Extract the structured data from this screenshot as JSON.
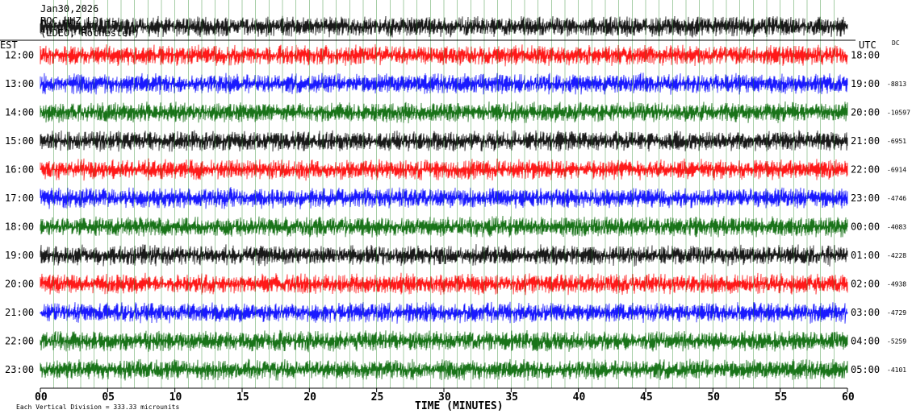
{
  "header": {
    "date": "Jan30,2026",
    "station": "ROC HHZ LD --",
    "network": "(LDEO, Rochester)"
  },
  "labels": {
    "left_zone": "EST",
    "right_zone": "UTC",
    "dc": "DC",
    "x_title": "TIME (MINUTES)",
    "footnote": "Each Vertical Division = 333.33 microunits"
  },
  "chart_data": {
    "type": "line",
    "title": "",
    "xlabel": "TIME (MINUTES)",
    "ylabel": "",
    "xlim": [
      0,
      60
    ],
    "x_ticks": [
      "00",
      "05",
      "10",
      "15",
      "20",
      "25",
      "30",
      "35",
      "40",
      "45",
      "50",
      "55",
      "60"
    ],
    "grid": true,
    "colors": {
      "black": "#000000",
      "red": "#ff0000",
      "blue": "#0000ff",
      "green": "#006400"
    },
    "rows": [
      {
        "est": "",
        "utc": "",
        "dc": "",
        "color": "black"
      },
      {
        "est": "12:00",
        "utc": "18:00",
        "dc": "",
        "color": "red"
      },
      {
        "est": "13:00",
        "utc": "19:00",
        "dc": "-8813",
        "color": "blue"
      },
      {
        "est": "14:00",
        "utc": "20:00",
        "dc": "-10597",
        "color": "green"
      },
      {
        "est": "15:00",
        "utc": "21:00",
        "dc": "-6951",
        "color": "black"
      },
      {
        "est": "16:00",
        "utc": "22:00",
        "dc": "-6914",
        "color": "red"
      },
      {
        "est": "17:00",
        "utc": "23:00",
        "dc": "-4746",
        "color": "blue"
      },
      {
        "est": "18:00",
        "utc": "00:00",
        "dc": "-4083",
        "color": "green"
      },
      {
        "est": "19:00",
        "utc": "01:00",
        "dc": "-4228",
        "color": "black"
      },
      {
        "est": "20:00",
        "utc": "02:00",
        "dc": "-4938",
        "color": "red"
      },
      {
        "est": "21:00",
        "utc": "03:00",
        "dc": "-4729",
        "color": "blue"
      },
      {
        "est": "22:00",
        "utc": "04:00",
        "dc": "-5259",
        "color": "green"
      },
      {
        "est": "23:00",
        "utc": "05:00",
        "dc": "-4101",
        "color": "green"
      }
    ]
  }
}
